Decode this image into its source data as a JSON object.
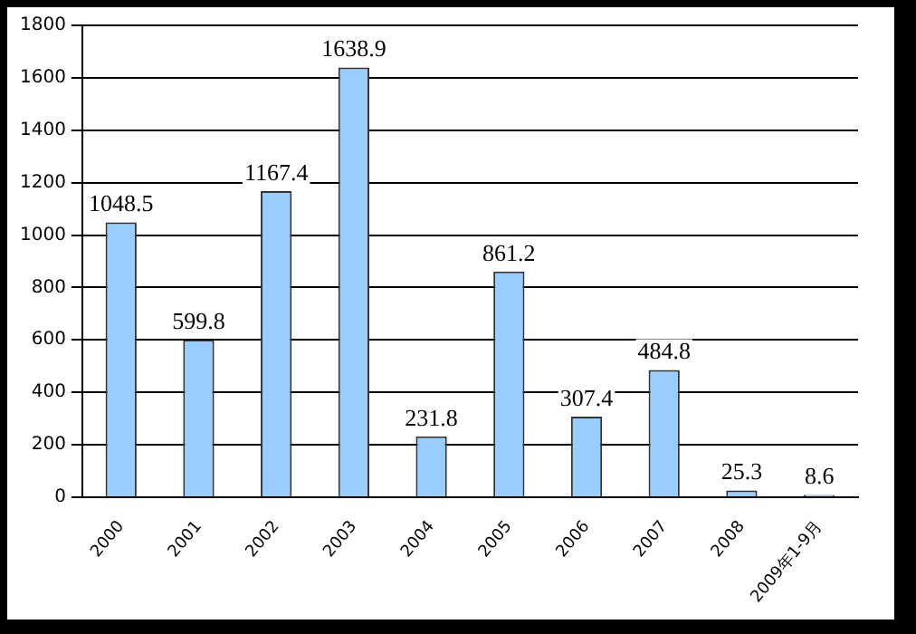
{
  "chart_data": {
    "type": "bar",
    "categories": [
      "2000",
      "2001",
      "2002",
      "2003",
      "2004",
      "2005",
      "2006",
      "2007",
      "2008",
      "2009年1-9月"
    ],
    "values": [
      1048.5,
      599.8,
      1167.4,
      1638.9,
      231.8,
      861.2,
      307.4,
      484.8,
      25.3,
      8.6
    ],
    "color": "#99ccff",
    "ylim": [
      0,
      1800
    ],
    "yticks": [
      0,
      200,
      400,
      600,
      800,
      1000,
      1200,
      1400,
      1600,
      1800
    ],
    "grid": "y",
    "legend": false,
    "data_labels": true
  }
}
